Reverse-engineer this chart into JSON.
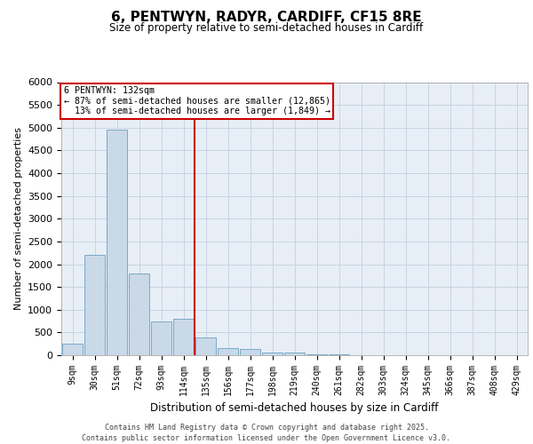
{
  "title_line1": "6, PENTWYN, RADYR, CARDIFF, CF15 8RE",
  "title_line2": "Size of property relative to semi-detached houses in Cardiff",
  "xlabel": "Distribution of semi-detached houses by size in Cardiff",
  "ylabel": "Number of semi-detached properties",
  "footer_line1": "Contains HM Land Registry data © Crown copyright and database right 2025.",
  "footer_line2": "Contains public sector information licensed under the Open Government Licence v3.0.",
  "categories": [
    "9sqm",
    "30sqm",
    "51sqm",
    "72sqm",
    "93sqm",
    "114sqm",
    "135sqm",
    "156sqm",
    "177sqm",
    "198sqm",
    "219sqm",
    "240sqm",
    "261sqm",
    "282sqm",
    "303sqm",
    "324sqm",
    "345sqm",
    "366sqm",
    "387sqm",
    "408sqm",
    "429sqm"
  ],
  "values": [
    250,
    2200,
    4950,
    1800,
    750,
    800,
    400,
    160,
    130,
    60,
    50,
    20,
    10,
    5,
    0,
    0,
    5,
    0,
    0,
    0,
    0
  ],
  "bar_color": "#c9d9e8",
  "bar_edge_color": "#6b9fc4",
  "property_label": "6 PENTWYN: 132sqm",
  "pct_smaller": 87,
  "count_smaller": 12865,
  "pct_larger": 13,
  "count_larger": 1849,
  "vline_color": "#cc0000",
  "vline_position": 5.5,
  "annotation_box_color": "#cc0000",
  "ylim": [
    0,
    6000
  ],
  "yticks": [
    0,
    500,
    1000,
    1500,
    2000,
    2500,
    3000,
    3500,
    4000,
    4500,
    5000,
    5500,
    6000
  ],
  "grid_color": "#c8d4e4",
  "background_color": "#e8eef5"
}
